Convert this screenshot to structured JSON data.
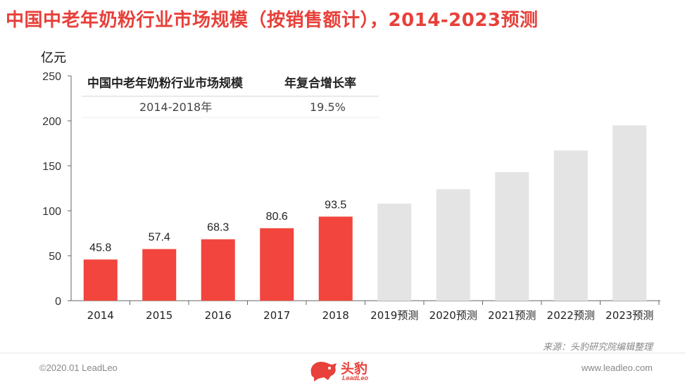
{
  "header": {
    "title": "中国中老年奶粉行业市场规模（按销售额计），2014-2023预测",
    "unit": "亿元"
  },
  "inset_table": {
    "headers": [
      "中国中老年奶粉行业市场规模",
      "年复合增长率"
    ],
    "row": [
      "2014-2018年",
      "19.5%"
    ]
  },
  "chart_data": {
    "type": "bar",
    "title": "中国中老年奶粉行业市场规模（按销售额计），2014-2023预测",
    "ylabel": "亿元",
    "ylim": [
      0,
      250
    ],
    "yticks": [
      0,
      50,
      100,
      150,
      200,
      250
    ],
    "grid": false,
    "categories": [
      "2014",
      "2015",
      "2016",
      "2017",
      "2018",
      "2019预测",
      "2020预测",
      "2021预测",
      "2022预测",
      "2023预测"
    ],
    "values": [
      45.8,
      57.4,
      68.3,
      80.6,
      93.5,
      108,
      124,
      143,
      167,
      195
    ],
    "data_labels": [
      "45.8",
      "57.4",
      "68.3",
      "80.6",
      "93.5",
      "",
      "",
      "",
      "",
      ""
    ],
    "colors": {
      "actual": "#f1453d",
      "forecast": "#e4e4e4"
    },
    "forecast_from_index": 5
  },
  "footer": {
    "source": "来源：头豹研究院编辑整理",
    "copyright": "©2020.01 LeadLeo",
    "website": "www.leadleo.com",
    "logo_text": "头豹",
    "logo_sub": "LeadLeo"
  }
}
